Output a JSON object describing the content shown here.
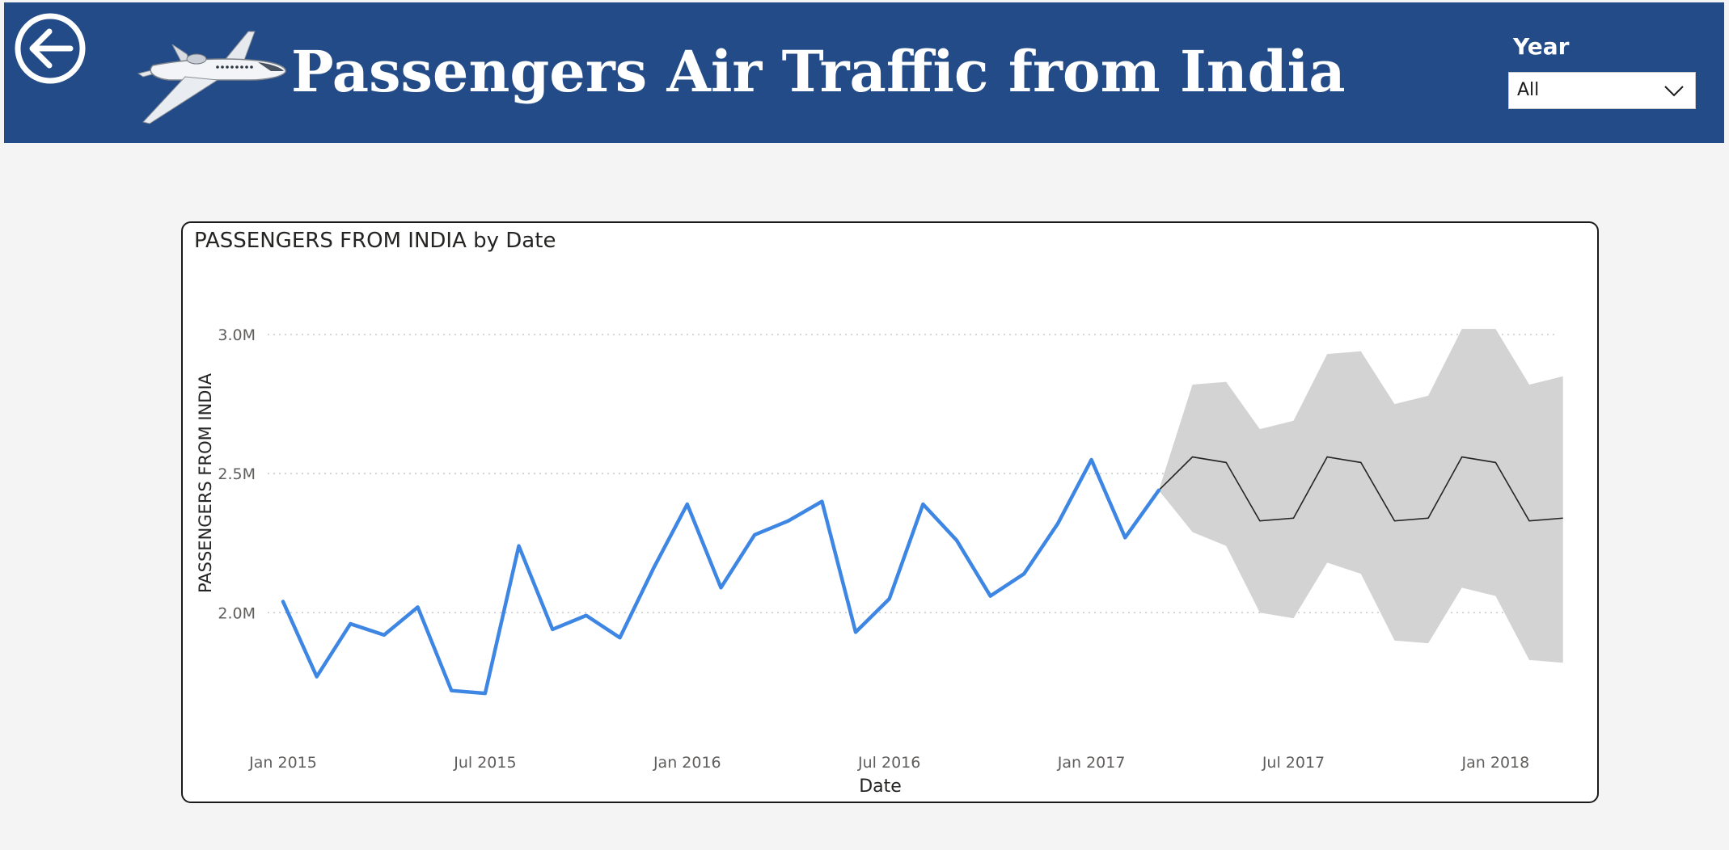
{
  "header": {
    "title": "Passengers Air Traffic from India",
    "back_icon": "back-arrow-icon",
    "logo_icon": "airplane-icon",
    "background_color": "#234b87"
  },
  "filter": {
    "label": "Year",
    "selected": "All"
  },
  "chart_data": {
    "type": "line",
    "title": "PASSENGERS FROM INDIA by Date",
    "xlabel": "Date",
    "ylabel": "PASSENGERS FROM INDIA",
    "y_ticks": [
      {
        "value": 3000000,
        "label": "3.0M"
      },
      {
        "value": 2500000,
        "label": "2.5M"
      },
      {
        "value": 2000000,
        "label": "2.0M"
      }
    ],
    "x_ticks": [
      {
        "value": "2015-01",
        "label": "Jan 2015"
      },
      {
        "value": "2015-07",
        "label": "Jul 2015"
      },
      {
        "value": "2016-01",
        "label": "Jan 2016"
      },
      {
        "value": "2016-07",
        "label": "Jul 2016"
      },
      {
        "value": "2017-01",
        "label": "Jan 2017"
      },
      {
        "value": "2017-07",
        "label": "Jul 2017"
      },
      {
        "value": "2018-01",
        "label": "Jan 2018"
      }
    ],
    "ylim": [
      1600000,
      3250000
    ],
    "grid": true,
    "x": [
      "2015-01",
      "2015-02",
      "2015-03",
      "2015-04",
      "2015-05",
      "2015-06",
      "2015-07",
      "2015-08",
      "2015-09",
      "2015-10",
      "2015-11",
      "2015-12",
      "2016-01",
      "2016-02",
      "2016-03",
      "2016-04",
      "2016-05",
      "2016-06",
      "2016-07",
      "2016-08",
      "2016-09",
      "2016-10",
      "2016-11",
      "2016-12",
      "2017-01",
      "2017-02",
      "2017-03"
    ],
    "values": [
      2040000,
      1770000,
      1960000,
      1920000,
      2020000,
      1720000,
      1710000,
      2240000,
      1940000,
      1990000,
      1910000,
      2160000,
      2390000,
      2090000,
      2280000,
      2330000,
      2400000,
      1930000,
      2050000,
      2390000,
      2260000,
      2060000,
      2140000,
      2320000,
      2550000,
      2270000,
      2440000
    ],
    "forecast": {
      "x": [
        "2017-03",
        "2017-04",
        "2017-05",
        "2017-06",
        "2017-07",
        "2017-08",
        "2017-09",
        "2017-10",
        "2017-11",
        "2017-12",
        "2018-01",
        "2018-02",
        "2018-03"
      ],
      "values": [
        2440000,
        2560000,
        2540000,
        2330000,
        2340000,
        2560000,
        2540000,
        2330000,
        2340000,
        2560000,
        2540000,
        2330000,
        2340000
      ],
      "upper": [
        2440000,
        2820000,
        2830000,
        2660000,
        2690000,
        2930000,
        2940000,
        2750000,
        2780000,
        3020000,
        3020000,
        2820000,
        2850000
      ],
      "lower": [
        2440000,
        2290000,
        2240000,
        2000000,
        1980000,
        2180000,
        2140000,
        1900000,
        1890000,
        2090000,
        2060000,
        1830000,
        1820000
      ]
    },
    "colors": {
      "actual": "#3e86e4",
      "forecast": "#252423",
      "band": "#d3d3d3",
      "gridline": "#c8c8c8"
    }
  }
}
